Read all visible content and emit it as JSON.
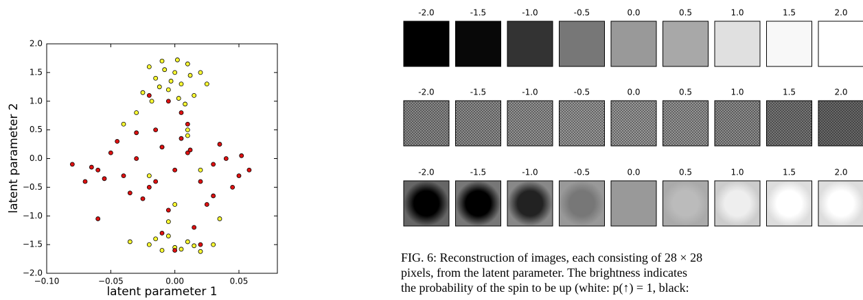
{
  "chart_data": {
    "type": "scatter",
    "xlabel": "latent parameter 1",
    "ylabel": "latent parameter 2",
    "xlim": [
      -0.1,
      0.08
    ],
    "ylim": [
      -2,
      2
    ],
    "xticks": [
      {
        "value": -0.1,
        "label": "−0.10"
      },
      {
        "value": -0.05,
        "label": "−0.05"
      },
      {
        "value": 0,
        "label": "0.00"
      },
      {
        "value": 0.05,
        "label": "0.05"
      }
    ],
    "yticks": [
      {
        "value": -2,
        "label": "−2.0"
      },
      {
        "value": -1.5,
        "label": "−1.5"
      },
      {
        "value": -1,
        "label": "−1.0"
      },
      {
        "value": -0.5,
        "label": "−0.5"
      },
      {
        "value": 0,
        "label": "0.0"
      },
      {
        "value": 0.5,
        "label": "0.5"
      },
      {
        "value": 1,
        "label": "1.0"
      },
      {
        "value": 1.5,
        "label": "1.5"
      },
      {
        "value": 2,
        "label": "2.0"
      }
    ],
    "series": [
      {
        "color": "#ffff33",
        "x": [
          -0.02,
          -0.015,
          -0.01,
          -0.005,
          0,
          0.005,
          0.01,
          0.015,
          -0.018,
          -0.008,
          0.002,
          0.012,
          -0.012,
          0.003,
          0.008,
          -0.003,
          0.02,
          0.025,
          -0.025,
          -0.03,
          -0.02,
          -0.01,
          0,
          0.01,
          0.02,
          -0.015,
          0.005,
          0.015,
          -0.005,
          0.01,
          -0.01,
          -0.02,
          0,
          0.03,
          -0.035,
          0.035,
          -0.04,
          0.02,
          -0.005,
          0.01
        ],
        "y": [
          1.6,
          1.4,
          1.7,
          1.2,
          1.5,
          1.3,
          1.65,
          1.1,
          1.0,
          1.55,
          1.72,
          1.45,
          1.25,
          1.05,
          0.95,
          1.35,
          1.5,
          1.3,
          1.15,
          0.8,
          -1.5,
          -1.6,
          -1.55,
          -1.45,
          -1.62,
          -1.4,
          -1.58,
          -1.52,
          -1.35,
          0.5,
          0.2,
          -0.3,
          -0.8,
          -1.5,
          -1.45,
          -1.05,
          0.6,
          -0.2,
          -1.1,
          0.4
        ]
      },
      {
        "color": "#dd1111",
        "x": [
          -0.08,
          -0.07,
          -0.06,
          -0.05,
          -0.04,
          -0.03,
          -0.02,
          -0.01,
          0,
          0.01,
          0.02,
          0.03,
          0.04,
          0.05,
          0.058,
          -0.045,
          -0.035,
          -0.025,
          -0.015,
          -0.005,
          0.005,
          0.015,
          0.025,
          0.035,
          0.045,
          -0.055,
          -0.065,
          0.052,
          -0.02,
          -0.01,
          0,
          0.01,
          0.02,
          -0.005,
          0.005,
          -0.06,
          0.03,
          -0.015,
          0.012,
          -0.03
        ],
        "y": [
          -0.1,
          -0.4,
          -0.2,
          0.1,
          -0.3,
          0.0,
          -0.5,
          0.2,
          -0.2,
          0.1,
          -0.4,
          -0.1,
          0.0,
          -0.3,
          -0.2,
          0.3,
          -0.6,
          -0.7,
          0.5,
          -0.9,
          0.8,
          -1.2,
          -0.8,
          0.25,
          -0.5,
          -0.35,
          -0.15,
          0.05,
          1.1,
          -1.3,
          -1.6,
          0.6,
          -1.5,
          1.0,
          0.35,
          -1.05,
          -0.65,
          -0.4,
          0.15,
          0.45
        ]
      }
    ]
  },
  "panels": {
    "labels": [
      "-2.0",
      "-1.5",
      "-1.0",
      "-0.5",
      "0.0",
      "0.5",
      "1.0",
      "1.5",
      "2.0"
    ],
    "rows": [
      {
        "style": "plain",
        "centers": [
          "#000000",
          "#080808",
          "#333333",
          "#777777",
          "#999999",
          "#a8a8a8",
          "#e0e0e0",
          "#f8f8f8",
          "#ffffff"
        ]
      },
      {
        "style": "checker",
        "centers": [
          "#8a8a8a",
          "#8e8e8e",
          "#949494",
          "#999999",
          "#9a9a9a",
          "#969696",
          "#8e8e8e",
          "#777777",
          "#6a6a6a"
        ]
      },
      {
        "style": "blob",
        "centers": [
          "#000000",
          "#000000",
          "#222222",
          "#777777",
          "#999999",
          "#bbbbbb",
          "#eeeeee",
          "#ffffff",
          "#ffffff"
        ],
        "edges": [
          "#666666",
          "#777777",
          "#888888",
          "#999999",
          "#999999",
          "#aaaaaa",
          "#cccccc",
          "#dddddd",
          "#dddddd"
        ]
      }
    ]
  },
  "caption": [
    "FIG. 6: Reconstruction of images, each consisting of 28 × 28",
    "pixels, from the latent parameter. The brightness indicates",
    "the probability of the spin to be up (white: p(↑) = 1, black:"
  ]
}
